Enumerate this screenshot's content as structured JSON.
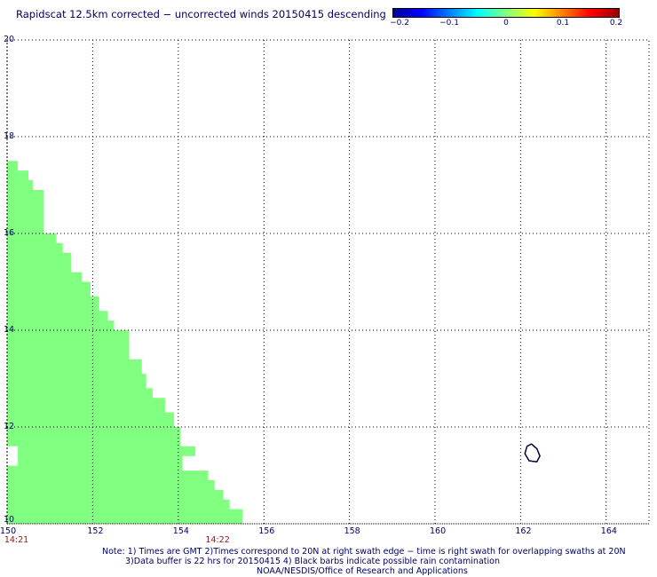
{
  "title": "Rapidscat 12.5km corrected − uncorrected winds 20150415 descending",
  "colorbar": {
    "ticks": [
      "−0.2",
      "−0.1",
      "0",
      "0.1",
      "0.2"
    ],
    "tick_values": [
      -0.2,
      -0.1,
      0,
      0.1,
      0.2
    ],
    "stops": [
      "#00009a",
      "#0000ff",
      "#0080ff",
      "#00ffff",
      "#80ff80",
      "#ffff00",
      "#ff8000",
      "#ff0000",
      "#990000"
    ]
  },
  "axes": {
    "lon_range": [
      150,
      165
    ],
    "lat_range": [
      10,
      20
    ],
    "x_ticks": [
      "150",
      "152",
      "154",
      "156",
      "158",
      "160",
      "162",
      "164"
    ],
    "x_tick_values": [
      150,
      152,
      154,
      156,
      158,
      160,
      162,
      164
    ],
    "y_ticks": [
      "10",
      "12",
      "14",
      "16",
      "18",
      "20"
    ],
    "y_tick_values": [
      10,
      12,
      14,
      16,
      18,
      20
    ]
  },
  "swath": {
    "fill_color": "#80ff80",
    "outline_lat_lon": [
      [
        10.0,
        150.0
      ],
      [
        17.5,
        150.0
      ],
      [
        17.5,
        150.25
      ],
      [
        17.3,
        150.25
      ],
      [
        17.3,
        150.5
      ],
      [
        17.1,
        150.5
      ],
      [
        17.1,
        150.6
      ],
      [
        16.9,
        150.6
      ],
      [
        16.9,
        150.85
      ],
      [
        16.0,
        150.85
      ],
      [
        16.0,
        151.15
      ],
      [
        15.8,
        151.15
      ],
      [
        15.8,
        151.3
      ],
      [
        15.6,
        151.3
      ],
      [
        15.6,
        151.5
      ],
      [
        15.2,
        151.5
      ],
      [
        15.2,
        151.75
      ],
      [
        15.0,
        151.75
      ],
      [
        15.0,
        151.95
      ],
      [
        14.7,
        151.95
      ],
      [
        14.7,
        152.15
      ],
      [
        14.4,
        152.15
      ],
      [
        14.4,
        152.35
      ],
      [
        14.2,
        152.35
      ],
      [
        14.2,
        152.5
      ],
      [
        14.0,
        152.5
      ],
      [
        14.0,
        152.85
      ],
      [
        13.4,
        152.85
      ],
      [
        13.4,
        153.15
      ],
      [
        13.1,
        153.15
      ],
      [
        13.1,
        153.25
      ],
      [
        12.8,
        153.25
      ],
      [
        12.8,
        153.4
      ],
      [
        12.6,
        153.4
      ],
      [
        12.6,
        153.7
      ],
      [
        12.3,
        153.7
      ],
      [
        12.3,
        153.9
      ],
      [
        12.0,
        153.9
      ],
      [
        12.0,
        154.05
      ],
      [
        11.6,
        154.05
      ],
      [
        11.6,
        154.4
      ],
      [
        11.4,
        154.4
      ],
      [
        11.4,
        154.1
      ],
      [
        11.1,
        154.1
      ],
      [
        11.1,
        154.4
      ],
      [
        11.1,
        154.7
      ],
      [
        10.9,
        154.7
      ],
      [
        10.9,
        154.85
      ],
      [
        10.7,
        154.85
      ],
      [
        10.7,
        155.05
      ],
      [
        10.5,
        155.05
      ],
      [
        10.5,
        155.2
      ],
      [
        10.3,
        155.2
      ],
      [
        10.3,
        155.5
      ],
      [
        10.0,
        155.5
      ],
      [
        10.0,
        150.0
      ]
    ],
    "notch_lat_lon": [
      [
        11.6,
        150.0
      ],
      [
        11.6,
        150.25
      ],
      [
        11.2,
        150.25
      ],
      [
        11.2,
        150.0
      ]
    ]
  },
  "island_outline_lat_lon": [
    [
      11.6,
      162.15
    ],
    [
      11.65,
      162.25
    ],
    [
      11.55,
      162.38
    ],
    [
      11.4,
      162.45
    ],
    [
      11.28,
      162.38
    ],
    [
      11.3,
      162.2
    ],
    [
      11.45,
      162.1
    ],
    [
      11.6,
      162.15
    ]
  ],
  "time_labels": [
    {
      "text": "14:21",
      "lon": 150.1
    },
    {
      "text": "14:22",
      "lon": 154.8
    }
  ],
  "notes": {
    "line1": "Note: 1) Times are GMT 2)Times correspond to 20N at right swath edge − time is right swath for overlapping swaths at 20N",
    "line2": "3)Data buffer is 22 hrs for 20150415 4) Black barbs indicate possible rain contamination",
    "line3": "NOAA/NESDIS/Office of Research and Applications"
  }
}
